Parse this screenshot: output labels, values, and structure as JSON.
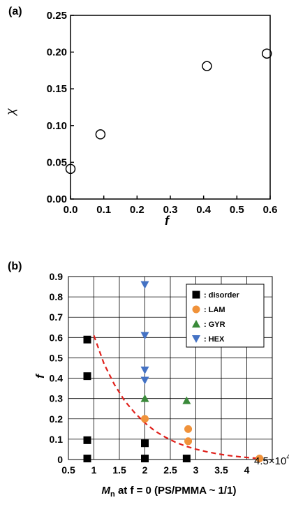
{
  "chart_data": [
    {
      "panel_label": "(a)",
      "type": "scatter",
      "xlabel": "f",
      "ylabel": "χ",
      "xlim": [
        0.0,
        0.6
      ],
      "ylim": [
        0.0,
        0.25
      ],
      "x_ticks": [
        "0.0",
        "0.1",
        "0.2",
        "0.3",
        "0.4",
        "0.5",
        "0.6"
      ],
      "y_ticks": [
        "0.00",
        "0.05",
        "0.10",
        "0.15",
        "0.20",
        "0.25"
      ],
      "grid": false,
      "marker": "open-circle",
      "series": [
        {
          "x": [
            0.0,
            0.09,
            0.41,
            0.59
          ],
          "y": [
            0.041,
            0.088,
            0.181,
            0.198
          ]
        }
      ]
    },
    {
      "panel_label": "(b)",
      "type": "scatter",
      "xlabel": "Mn at f = 0 (PS/PMMA ~ 1/1)",
      "xlabel_main": "M",
      "xlabel_sub": "n",
      "xlabel_rest": " at f = 0 (PS/PMMA ~ 1/1)",
      "x_multiplier": "4.5×10",
      "x_multiplier_exp": "4",
      "ylabel": "f",
      "xlim": [
        0.5,
        4.5
      ],
      "ylim": [
        0.0,
        0.9
      ],
      "x_ticks": [
        "0.5",
        "1",
        "1.5",
        "2",
        "2.5",
        "3",
        "3.5",
        "4"
      ],
      "y_ticks": [
        "0",
        "0.1",
        "0.2",
        "0.3",
        "0.4",
        "0.5",
        "0.6",
        "0.7",
        "0.8",
        "0.9"
      ],
      "grid": true,
      "legend_position": "top-right",
      "series": [
        {
          "name": ": disorder",
          "marker": "square",
          "color": "#000000",
          "x": [
            0.87,
            0.87,
            0.87,
            0.87,
            2.0,
            2.0,
            2.82
          ],
          "y": [
            0.59,
            0.41,
            0.095,
            0.005,
            0.08,
            0.005,
            0.005
          ]
        },
        {
          "name": ": LAM",
          "marker": "circle",
          "color": "#f0923a",
          "x": [
            2.0,
            2.85,
            2.85,
            4.25
          ],
          "y": [
            0.2,
            0.15,
            0.09,
            0.005
          ]
        },
        {
          "name": ": GYR",
          "marker": "triangle-up",
          "color": "#3a8a3a",
          "x": [
            2.0,
            2.82
          ],
          "y": [
            0.3,
            0.29
          ]
        },
        {
          "name": ": HEX",
          "marker": "triangle-down",
          "color": "#4472c4",
          "x": [
            2.0,
            2.0,
            2.0,
            2.0
          ],
          "y": [
            0.86,
            0.61,
            0.44,
            0.39
          ]
        }
      ],
      "fit_line": {
        "style": "dashed",
        "color": "#e0201b",
        "x": [
          1.0,
          1.2,
          1.4,
          1.6,
          1.8,
          2.0,
          2.2,
          2.4,
          2.6,
          2.8,
          3.0,
          3.2,
          3.4,
          3.6,
          3.8,
          4.0,
          4.2
        ],
        "y": [
          0.61,
          0.47,
          0.37,
          0.29,
          0.23,
          0.18,
          0.14,
          0.11,
          0.085,
          0.066,
          0.051,
          0.039,
          0.029,
          0.021,
          0.015,
          0.01,
          0.006
        ]
      }
    }
  ]
}
